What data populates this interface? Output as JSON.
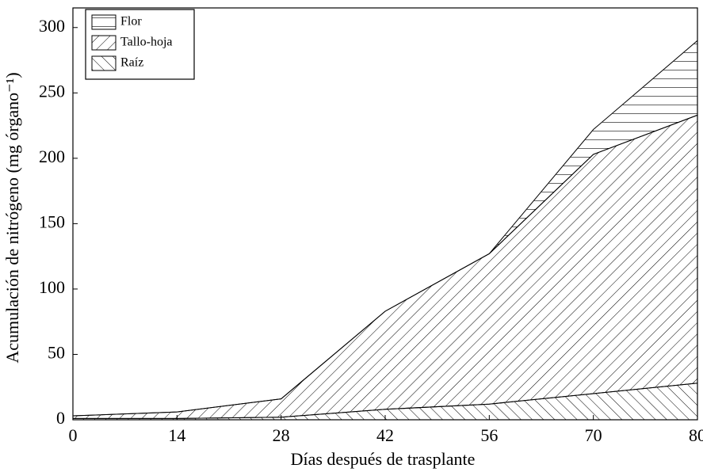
{
  "chart_data": {
    "type": "stacked_area",
    "xlabel": "Días después de trasplante",
    "ylabel": "Acumulación de nitrógeno (mg órgano⁻¹)",
    "categories": [
      "0",
      "14",
      "28",
      "42",
      "56",
      "70",
      "80"
    ],
    "series": [
      {
        "name": "Raíz",
        "color": "#000000",
        "values": [
          1,
          1,
          2,
          8,
          12,
          20,
          28
        ]
      },
      {
        "name": "Tallo-hoja",
        "color": "#000000",
        "values": [
          2,
          5,
          14,
          75,
          115,
          183,
          205
        ]
      },
      {
        "name": "Flor",
        "color": "#000000",
        "values": [
          0,
          0,
          0,
          0,
          0,
          19,
          57
        ]
      }
    ],
    "ylim": [
      0,
      315
    ],
    "yticks": [
      0,
      50,
      100,
      150,
      200,
      250,
      300
    ],
    "legend": "upper left"
  }
}
